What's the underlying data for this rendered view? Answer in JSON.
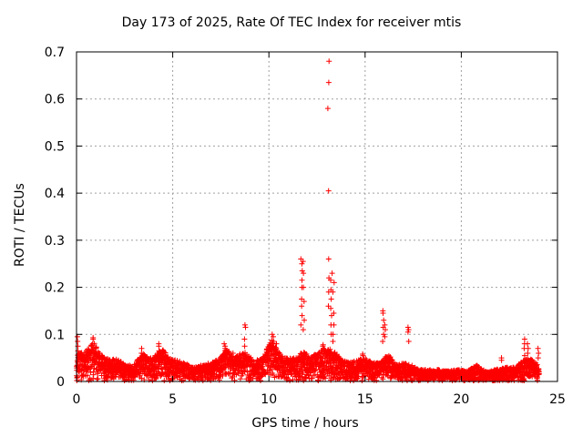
{
  "chart_data": {
    "type": "scatter",
    "title": "Day 173 of 2025, Rate Of TEC Index for receiver mtis",
    "xlabel": "GPS time / hours",
    "ylabel": "ROTI / TECUs",
    "xlim": [
      0,
      25
    ],
    "ylim": [
      0,
      0.7
    ],
    "xticks": [
      0,
      5,
      10,
      15,
      20,
      25
    ],
    "xtick_labels": [
      "0",
      "5",
      "10",
      "15",
      "20",
      "25"
    ],
    "yticks": [
      0,
      0.1,
      0.2,
      0.3,
      0.4,
      0.5,
      0.6,
      0.7
    ],
    "ytick_labels": [
      "0",
      "0.1",
      "0.2",
      "0.3",
      "0.4",
      "0.5",
      "0.6",
      "0.7"
    ],
    "grid": true,
    "marker": "+",
    "color": "#ff0000",
    "envelope": {
      "description": "approximate upper envelope of dense ROTI point cloud (hours, TECU/s)",
      "x": [
        0,
        0.1,
        0.3,
        0.6,
        0.9,
        1.2,
        1.5,
        1.8,
        2.1,
        2.5,
        3.0,
        3.4,
        3.8,
        4.2,
        4.5,
        4.8,
        5.2,
        5.6,
        6.0,
        6.5,
        7.0,
        7.5,
        7.8,
        8.2,
        8.7,
        9.2,
        9.7,
        10.1,
        10.4,
        10.8,
        11.2,
        11.5,
        11.8,
        12.1,
        12.5,
        12.9,
        13.2,
        13.5,
        13.8,
        14.2,
        14.6,
        15.0,
        15.4,
        15.8,
        16.2,
        16.6,
        17.0,
        17.4,
        17.8,
        18.3,
        18.8,
        19.3,
        19.8,
        20.3,
        20.8,
        21.3,
        21.8,
        22.3,
        22.8,
        23.2,
        23.6,
        24.0
      ],
      "y": [
        0.035,
        0.07,
        0.06,
        0.07,
        0.085,
        0.06,
        0.05,
        0.045,
        0.05,
        0.035,
        0.035,
        0.06,
        0.05,
        0.06,
        0.07,
        0.05,
        0.045,
        0.04,
        0.03,
        0.035,
        0.04,
        0.05,
        0.07,
        0.05,
        0.065,
        0.045,
        0.05,
        0.09,
        0.07,
        0.05,
        0.05,
        0.05,
        0.07,
        0.05,
        0.06,
        0.07,
        0.07,
        0.06,
        0.045,
        0.04,
        0.045,
        0.05,
        0.04,
        0.04,
        0.06,
        0.035,
        0.04,
        0.035,
        0.025,
        0.025,
        0.025,
        0.022,
        0.025,
        0.022,
        0.035,
        0.02,
        0.025,
        0.03,
        0.03,
        0.045,
        0.05,
        0.035
      ]
    },
    "spikes": [
      {
        "x": 0.05,
        "values": [
          0.065,
          0.075,
          0.085,
          0.095
        ]
      },
      {
        "x": 0.85,
        "values": [
          0.07,
          0.08,
          0.09,
          0.093
        ]
      },
      {
        "x": 3.4,
        "values": [
          0.06,
          0.07
        ]
      },
      {
        "x": 4.3,
        "values": [
          0.065,
          0.075,
          0.08
        ]
      },
      {
        "x": 7.7,
        "values": [
          0.065,
          0.07,
          0.075,
          0.08
        ]
      },
      {
        "x": 8.1,
        "values": [
          0.06
        ]
      },
      {
        "x": 8.75,
        "values": [
          0.075,
          0.09,
          0.115,
          0.12
        ]
      },
      {
        "x": 10.2,
        "values": [
          0.075,
          0.085,
          0.095,
          0.1
        ]
      },
      {
        "x": 10.4,
        "values": [
          0.07,
          0.08
        ]
      },
      {
        "x": 11.7,
        "values": [
          0.12,
          0.14,
          0.16,
          0.175,
          0.2,
          0.215,
          0.235,
          0.25,
          0.26
        ]
      },
      {
        "x": 11.8,
        "values": [
          0.11,
          0.13,
          0.17,
          0.2,
          0.23,
          0.255
        ]
      },
      {
        "x": 12.8,
        "values": [
          0.07,
          0.075,
          0.078
        ]
      },
      {
        "x": 13.1,
        "values": [
          0.16,
          0.19,
          0.22,
          0.26,
          0.405,
          0.58,
          0.635,
          0.68
        ]
      },
      {
        "x": 13.25,
        "values": [
          0.1,
          0.12,
          0.14,
          0.155,
          0.175,
          0.195,
          0.215,
          0.23
        ]
      },
      {
        "x": 13.35,
        "values": [
          0.085,
          0.1,
          0.12,
          0.145,
          0.19,
          0.21
        ]
      },
      {
        "x": 14.9,
        "values": [
          0.055,
          0.058
        ]
      },
      {
        "x": 15.95,
        "values": [
          0.085,
          0.1,
          0.115,
          0.13,
          0.145,
          0.15
        ]
      },
      {
        "x": 16.05,
        "values": [
          0.095,
          0.11,
          0.12
        ]
      },
      {
        "x": 17.25,
        "values": [
          0.085,
          0.105,
          0.11,
          0.115
        ]
      },
      {
        "x": 22.1,
        "values": [
          0.045,
          0.05
        ]
      },
      {
        "x": 23.3,
        "values": [
          0.055,
          0.07,
          0.08,
          0.09
        ]
      },
      {
        "x": 23.45,
        "values": [
          0.06,
          0.07,
          0.08
        ]
      },
      {
        "x": 24.0,
        "values": [
          0.05,
          0.06,
          0.07
        ]
      }
    ]
  }
}
